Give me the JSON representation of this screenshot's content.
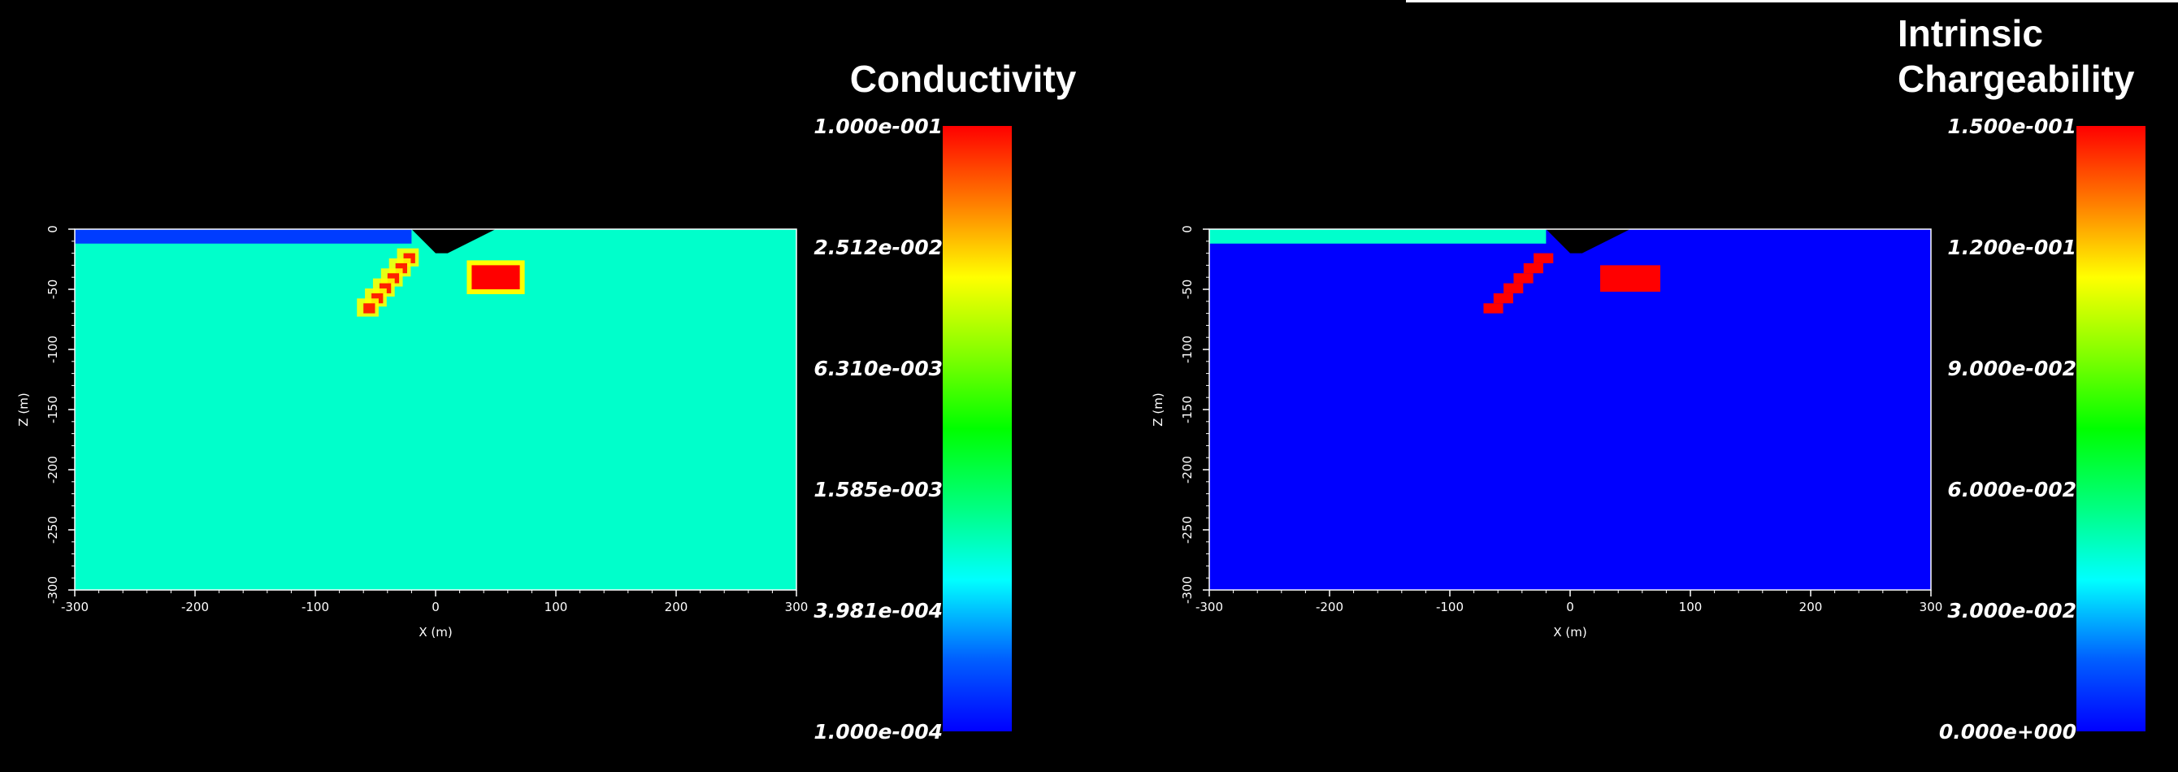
{
  "chart_data": [
    {
      "type": "heatmap",
      "title": "Conductivity",
      "xlabel": "X (m)",
      "ylabel": "Z (m)",
      "xlim": [
        -300,
        300
      ],
      "ylim": [
        -300,
        0
      ],
      "x_ticks": [
        "-300",
        "-200",
        "-100",
        "0",
        "100",
        "200",
        "300"
      ],
      "y_ticks": [
        "0",
        "-50",
        "-100",
        "-150",
        "-200",
        "-250",
        "-300"
      ],
      "colorbar": {
        "scale": "log",
        "labels": [
          "1.000e-001",
          "2.512e-002",
          "6.310e-003",
          "1.585e-003",
          "3.981e-004",
          "1.000e-004"
        ],
        "min": 0.0001,
        "max": 0.1
      },
      "background_value": 0.0008,
      "surface_layer_value": 0.00015,
      "anomalies": [
        {
          "shape": "dipping-body",
          "x_range": [
            -60,
            -20
          ],
          "z_range": [
            -70,
            -20
          ],
          "value": 0.08
        },
        {
          "shape": "block",
          "x_range": [
            30,
            70
          ],
          "z_range": [
            -50,
            -30
          ],
          "value": 0.1
        }
      ],
      "topography_notch": {
        "x_range": [
          -20,
          50
        ],
        "depth": 20
      }
    },
    {
      "type": "heatmap",
      "title": "Intrinsic Chargeability",
      "title_lines": [
        "Intrinsic",
        "Chargeability"
      ],
      "xlabel": "X (m)",
      "ylabel": "Z (m)",
      "xlim": [
        -300,
        300
      ],
      "ylim": [
        -300,
        0
      ],
      "x_ticks": [
        "-300",
        "-200",
        "-100",
        "0",
        "100",
        "200",
        "300"
      ],
      "y_ticks": [
        "0",
        "-50",
        "-100",
        "-150",
        "-200",
        "-250",
        "-300"
      ],
      "colorbar": {
        "scale": "linear",
        "labels": [
          "1.500e-001",
          "1.200e-001",
          "9.000e-002",
          "6.000e-002",
          "3.000e-002",
          "0.000e+000"
        ],
        "min": 0,
        "max": 0.15
      },
      "background_value": 0,
      "surface_layer_value": 0.045,
      "anomalies": [
        {
          "shape": "dipping-body",
          "x_range": [
            -70,
            -20
          ],
          "z_range": [
            -70,
            -20
          ],
          "value": 0.15
        },
        {
          "shape": "block",
          "x_range": [
            25,
            75
          ],
          "z_range": [
            -52,
            -30
          ],
          "value": 0.15
        }
      ],
      "topography_notch": {
        "x_range": [
          -20,
          50
        ],
        "depth": 20
      }
    }
  ],
  "colors": {
    "colormap": [
      "#0000ff",
      "#0080ff",
      "#00ffff",
      "#00ff80",
      "#00ff00",
      "#80ff00",
      "#ffff00",
      "#ff8000",
      "#ff0000"
    ],
    "background": "#000000",
    "axis": "#ffffff"
  }
}
